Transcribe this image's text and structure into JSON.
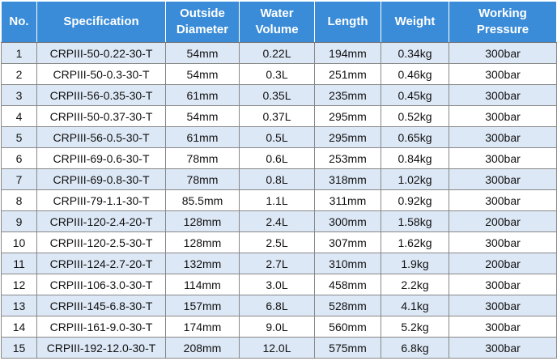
{
  "table": {
    "headers": [
      "No.",
      "Specification",
      "Outside Diameter",
      "Water Volume",
      "Length",
      "Weight",
      "Working Pressure"
    ],
    "rows": [
      [
        "1",
        "CRPIII-50-0.22-30-T",
        "54mm",
        "0.22L",
        "194mm",
        "0.34kg",
        "300bar"
      ],
      [
        "2",
        "CRPIII-50-0.3-30-T",
        "54mm",
        "0.3L",
        "251mm",
        "0.46kg",
        "300bar"
      ],
      [
        "3",
        "CRPIII-56-0.35-30-T",
        "61mm",
        "0.35L",
        "235mm",
        "0.45kg",
        "300bar"
      ],
      [
        "4",
        "CRPIII-50-0.37-30-T",
        "54mm",
        "0.37L",
        "295mm",
        "0.52kg",
        "300bar"
      ],
      [
        "5",
        "CRPIII-56-0.5-30-T",
        "61mm",
        "0.5L",
        "295mm",
        "0.65kg",
        "300bar"
      ],
      [
        "6",
        "CRPIII-69-0.6-30-T",
        "78mm",
        "0.6L",
        "253mm",
        "0.84kg",
        "300bar"
      ],
      [
        "7",
        "CRPIII-69-0.8-30-T",
        "78mm",
        "0.8L",
        "318mm",
        "1.02kg",
        "300bar"
      ],
      [
        "8",
        "CRPIII-79-1.1-30-T",
        "85.5mm",
        "1.1L",
        "311mm",
        "0.92kg",
        "300bar"
      ],
      [
        "9",
        "CRPIII-120-2.4-20-T",
        "128mm",
        "2.4L",
        "300mm",
        "1.58kg",
        "200bar"
      ],
      [
        "10",
        "CRPIII-120-2.5-30-T",
        "128mm",
        "2.5L",
        "307mm",
        "1.62kg",
        "300bar"
      ],
      [
        "11",
        "CRPIII-124-2.7-20-T",
        "132mm",
        "2.7L",
        "310mm",
        "1.9kg",
        "200bar"
      ],
      [
        "12",
        "CRPIII-106-3.0-30-T",
        "114mm",
        "3.0L",
        "458mm",
        "2.2kg",
        "300bar"
      ],
      [
        "13",
        "CRPIII-145-6.8-30-T",
        "157mm",
        "6.8L",
        "528mm",
        "4.1kg",
        "300bar"
      ],
      [
        "14",
        "CRPIII-161-9.0-30-T",
        "174mm",
        "9.0L",
        "560mm",
        "5.2kg",
        "300bar"
      ],
      [
        "15",
        "CRPIII-192-12.0-30-T",
        "208mm",
        "12.0L",
        "575mm",
        "6.8kg",
        "300bar"
      ]
    ]
  }
}
